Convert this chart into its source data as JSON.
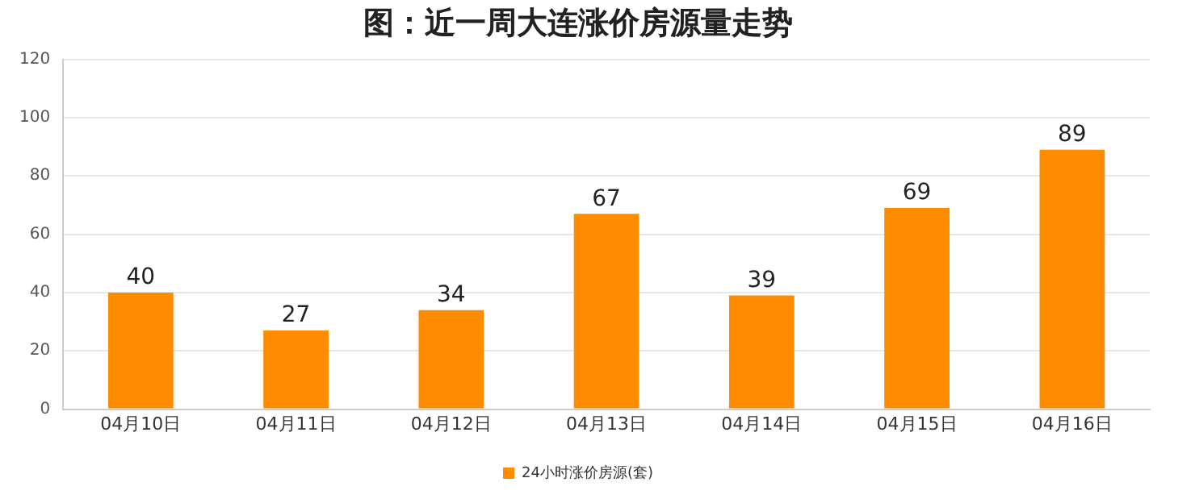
{
  "chart_data": {
    "type": "bar",
    "title": "图：近一周大连涨价房源量走势",
    "categories": [
      "04月10日",
      "04月11日",
      "04月12日",
      "04月13日",
      "04月14日",
      "04月15日",
      "04月16日"
    ],
    "series": [
      {
        "name": "24小时涨价房源(套)",
        "color": "#ff8c00",
        "values": [
          40,
          27,
          34,
          67,
          39,
          69,
          89
        ]
      }
    ],
    "ylim": [
      0,
      120
    ],
    "yticks": [
      0,
      20,
      40,
      60,
      80,
      100,
      120
    ],
    "grid": "y",
    "legend": "bottom",
    "data_labels": true
  }
}
